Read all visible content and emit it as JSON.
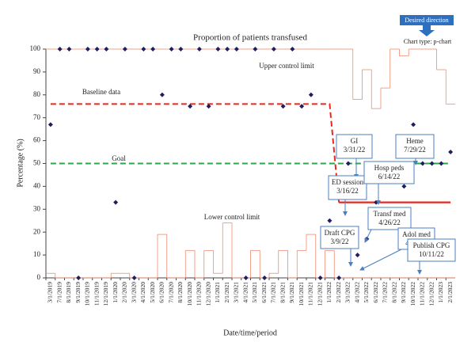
{
  "chart_data": {
    "type": "p-chart",
    "title": "Proportion of patients transfused",
    "x_label": "Date/time/period",
    "y_label": "Percentage (%)",
    "chart_type_note": "Chart type: p-chart",
    "direction_note": "Desired direction",
    "categories": [
      "3/1/2019",
      "7/1/2019",
      "8/1/2019",
      "9/1/2019",
      "10/1/2019",
      "11/1/2019",
      "12/1/2019",
      "1/1/2020",
      "2/1/2020",
      "3/1/2020",
      "4/1/2020",
      "5/1/2020",
      "6/1/2020",
      "7/1/2020",
      "8/1/2020",
      "10/1/2020",
      "11/1/2020",
      "12/1/2020",
      "1/1/2021",
      "2/1/2021",
      "3/1/2021",
      "4/1/2021",
      "5/1/2021",
      "6/1/2021",
      "7/1/2021",
      "8/1/2021",
      "9/1/2021",
      "10/1/2021",
      "11/1/2021",
      "12/1/2021",
      "1/1/2022",
      "2/1/2022",
      "3/1/2022",
      "4/1/2022",
      "5/1/2022",
      "6/1/2022",
      "7/1/2022",
      "8/1/2022",
      "9/1/2022",
      "10/1/2022",
      "11/1/2022",
      "12/1/2022",
      "1/1/2023",
      "2/1/2023"
    ],
    "values": [
      67,
      100,
      100,
      0,
      100,
      100,
      100,
      33,
      100,
      0,
      100,
      100,
      80,
      100,
      100,
      75,
      100,
      75,
      100,
      100,
      100,
      0,
      100,
      0,
      100,
      75,
      100,
      75,
      80,
      0,
      25,
      0,
      50,
      10,
      17,
      33,
      25,
      25,
      40,
      67,
      50,
      50,
      50,
      55
    ],
    "color": "#1f1f5f",
    "series": [
      {
        "name": "Baseline data",
        "color": "#e8281e",
        "style": "dashed",
        "values": [
          76,
          76,
          76,
          76,
          76,
          76,
          76,
          76,
          76,
          76,
          76,
          76,
          76,
          76,
          76,
          76,
          76,
          76,
          76,
          76,
          76,
          76,
          76,
          76,
          76,
          76,
          76,
          76,
          76,
          76,
          76,
          33,
          null,
          null,
          null,
          null,
          null,
          null,
          null,
          null,
          null,
          null,
          null,
          null
        ]
      },
      {
        "color": "#e8281e",
        "style": "solid",
        "values": [
          null,
          null,
          null,
          null,
          null,
          null,
          null,
          null,
          null,
          null,
          null,
          null,
          null,
          null,
          null,
          null,
          null,
          null,
          null,
          null,
          null,
          null,
          null,
          null,
          null,
          null,
          null,
          null,
          null,
          null,
          null,
          33,
          33,
          33,
          33,
          33,
          33,
          33,
          33,
          33,
          33,
          33,
          33,
          33
        ]
      },
      {
        "name": "Goal",
        "color": "#2aa84a",
        "style": "dashed",
        "values": [
          50,
          50,
          50,
          50,
          50,
          50,
          50,
          50,
          50,
          50,
          50,
          50,
          50,
          50,
          50,
          50,
          50,
          50,
          50,
          50,
          50,
          50,
          50,
          50,
          50,
          50,
          50,
          50,
          50,
          50,
          50,
          50,
          50,
          50,
          50,
          50,
          50,
          50,
          50,
          50,
          50,
          50,
          50,
          50
        ]
      },
      {
        "name": "Upper control limit",
        "color": "#f08a70",
        "style": "step",
        "values": [
          100,
          100,
          100,
          100,
          100,
          100,
          100,
          100,
          100,
          100,
          100,
          100,
          100,
          100,
          100,
          100,
          100,
          100,
          100,
          100,
          100,
          100,
          100,
          100,
          100,
          100,
          100,
          100,
          100,
          100,
          100,
          100,
          100,
          78,
          91,
          74,
          83,
          100,
          97,
          100,
          100,
          100,
          91,
          76
        ]
      },
      {
        "name": "Lower control limit",
        "color": "#f08a70",
        "style": "step",
        "values": [
          2,
          0,
          0,
          0,
          0,
          0,
          0,
          2,
          2,
          0,
          0,
          0,
          19,
          0,
          0,
          12,
          0,
          12,
          2,
          24,
          0,
          0,
          12,
          0,
          2,
          12,
          0,
          12,
          19,
          0,
          12,
          0,
          0,
          0,
          0,
          0,
          0,
          0,
          0,
          0,
          0,
          0,
          0,
          0
        ]
      }
    ],
    "ylim": [
      0,
      100
    ],
    "yticks": [
      0,
      10,
      20,
      30,
      40,
      50,
      60,
      70,
      80,
      90,
      100
    ],
    "annotations": [
      {
        "lines": [
          "GI",
          "3/31/22"
        ]
      },
      {
        "lines": [
          "ED session",
          "3/16/22"
        ]
      },
      {
        "lines": [
          "Hosp peds",
          "6/14/22"
        ]
      },
      {
        "lines": [
          "Heme",
          "7/29/22"
        ]
      },
      {
        "lines": [
          "Transf med",
          "4/26/22"
        ]
      },
      {
        "lines": [
          "Draft CPG",
          "3/9/22"
        ]
      },
      {
        "lines": [
          "Adol med",
          "4/27/22"
        ]
      },
      {
        "lines": [
          "Publish CPG",
          "10/11/22"
        ]
      }
    ]
  }
}
